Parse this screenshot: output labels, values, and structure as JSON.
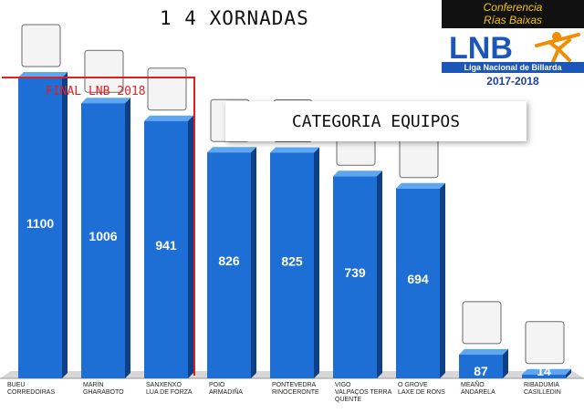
{
  "header": {
    "title": "1 4 XORNADAS",
    "brand_top": "Conferencia\nRías Baixas",
    "brand_logo_text": "LNB",
    "brand_name": "Liga Nacional de Billarda",
    "brand_season": "2017-2018"
  },
  "final_label": "FINAL LNB 2018",
  "category_label": "CATEGORIA EQUIPOS",
  "colors": {
    "bar": "#1d6fd6",
    "bar_dark": "#0f3f86",
    "bar_top": "#5da6f2",
    "accent_red": "#e02020"
  },
  "chart_data": {
    "type": "bar",
    "categories": [
      [
        "BUEU",
        "CORREDOIRAS"
      ],
      [
        "MARÍN",
        "GHARABOTO"
      ],
      [
        "SANXENXO",
        "LUA DE FORZA"
      ],
      [
        "POIO",
        "ARMADIÑA"
      ],
      [
        "PONTEVEDRA",
        "RINOCERONTE"
      ],
      [
        "VIGO",
        "VALPAÇOS TERRA",
        "QUENTE"
      ],
      [
        "O GROVE",
        "LAXE DE RONS"
      ],
      [
        "MEAÑO",
        "ANDARELA"
      ],
      [
        "RIBADUMIA",
        "CASILLEDIN"
      ]
    ],
    "values": [
      1100,
      1006,
      941,
      826,
      825,
      739,
      694,
      87,
      14
    ],
    "title": "",
    "xlabel": "",
    "ylabel": "",
    "ylim": [
      0,
      1250
    ],
    "grid": false,
    "legend": "none",
    "logo_icons": [
      "corredoiras-logo",
      "gharaboto-logo",
      "lua-de-forza-logo",
      "armadina-logo",
      "rinoceronte-logo",
      "valpacos-logo",
      "laxe-de-rons-logo",
      "andarela-logo",
      "casilledin-logo"
    ]
  }
}
